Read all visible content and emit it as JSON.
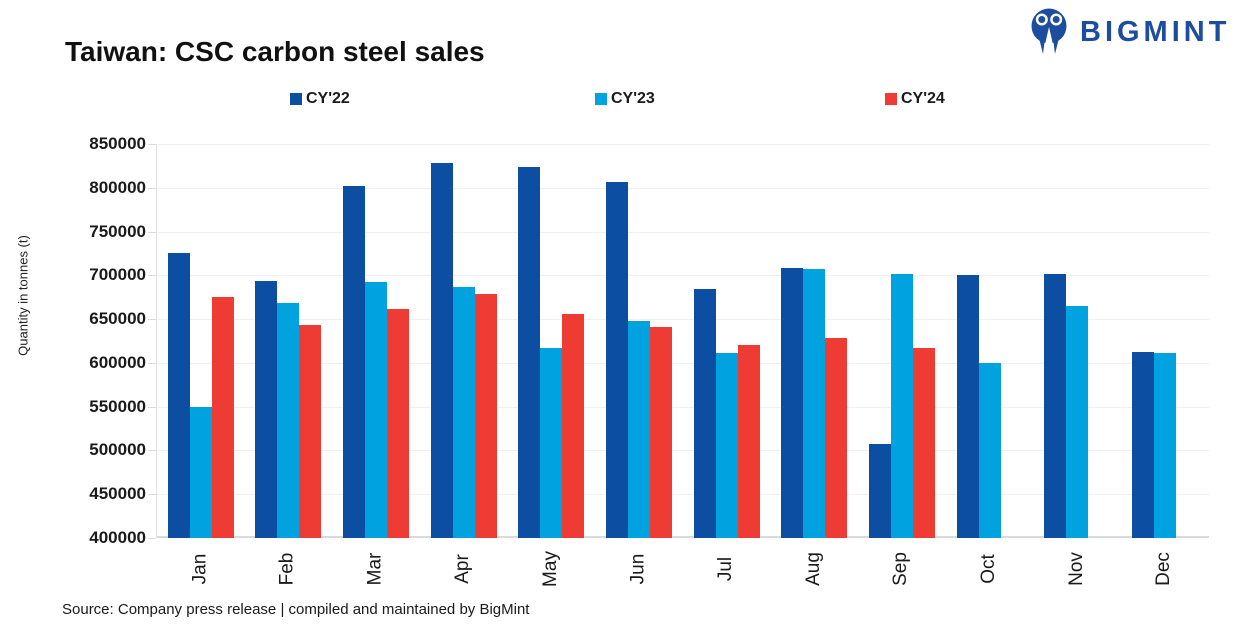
{
  "header": {
    "title": "Taiwan: CSC carbon steel sales",
    "brand": "BIGMINT"
  },
  "colors": {
    "cy22": "#0B4EA2",
    "cy23": "#00A3E0",
    "cy24": "#EE3B33",
    "brand_blue": "#1C4D9E",
    "gridline": "#F0F0F0",
    "axis_line": "#D9D9D9"
  },
  "chart_data": {
    "type": "bar",
    "title": "Taiwan: CSC carbon steel sales",
    "ylabel": "Quantity in tonnes (t)",
    "xlabel": "",
    "ylim": [
      400000,
      850000
    ],
    "ytick_step": 50000,
    "yticks": [
      850000,
      800000,
      750000,
      700000,
      650000,
      600000,
      550000,
      500000,
      450000,
      400000
    ],
    "grid": true,
    "legend_position": "top",
    "categories": [
      "Jan",
      "Feb",
      "Mar",
      "Apr",
      "May",
      "Jun",
      "Jul",
      "Aug",
      "Sep",
      "Oct",
      "Nov",
      "Dec"
    ],
    "series": [
      {
        "name": "CY'22",
        "color_key": "cy22",
        "values": [
          725000,
          693000,
          802000,
          828000,
          824000,
          807000,
          684000,
          708000,
          507000,
          700000,
          702000,
          612000
        ]
      },
      {
        "name": "CY'23",
        "color_key": "cy23",
        "values": [
          550000,
          668000,
          692000,
          687000,
          617000,
          648000,
          611000,
          707000,
          701000,
          600000,
          665000,
          611000
        ]
      },
      {
        "name": "CY'24",
        "color_key": "cy24",
        "values": [
          675000,
          643000,
          661000,
          679000,
          656000,
          641000,
          620000,
          628000,
          617000,
          null,
          null,
          null
        ]
      }
    ]
  },
  "footer": {
    "source": "Source: Company press release | compiled and maintained by BigMint"
  }
}
